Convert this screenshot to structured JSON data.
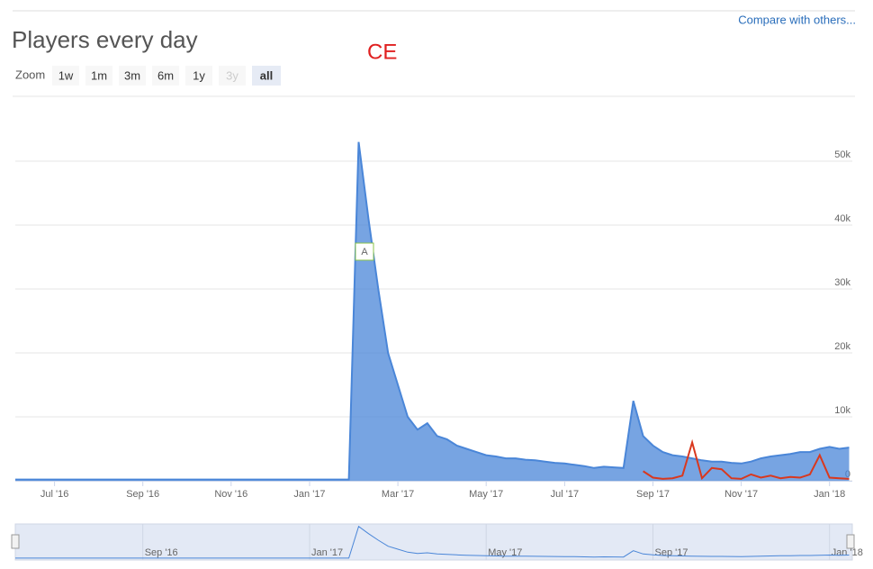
{
  "page": {
    "compare_link": "Compare with others...",
    "badge": "CE",
    "zoom_label": "Zoom",
    "zoom_buttons": [
      "1w",
      "1m",
      "3m",
      "6m",
      "1y",
      "3y",
      "all"
    ],
    "disabled_button": "3y",
    "active_button": "all"
  },
  "chart_data": {
    "type": "area",
    "title": "Players every day",
    "categories": [
      null,
      null,
      null,
      null,
      "Jul '16",
      null,
      null,
      null,
      null,
      null,
      null,
      null,
      null,
      "Sep '16",
      null,
      null,
      null,
      null,
      null,
      null,
      null,
      null,
      "Nov '16",
      null,
      null,
      null,
      null,
      null,
      null,
      null,
      "Jan '17",
      null,
      null,
      null,
      null,
      null,
      null,
      null,
      null,
      "Mar '17",
      null,
      null,
      null,
      null,
      null,
      null,
      null,
      null,
      "May '17",
      null,
      null,
      null,
      null,
      null,
      null,
      null,
      "Jul '17",
      null,
      null,
      null,
      null,
      null,
      null,
      null,
      null,
      "Sep '17",
      null,
      null,
      null,
      null,
      null,
      null,
      null,
      null,
      "Nov '17",
      null,
      null,
      null,
      null,
      null,
      null,
      null,
      null,
      "Jan '18",
      null,
      null
    ],
    "series": [
      {
        "name": "Players",
        "color": "#4a86d8",
        "values": [
          200,
          200,
          200,
          200,
          200,
          200,
          200,
          200,
          200,
          200,
          200,
          200,
          200,
          200,
          200,
          200,
          200,
          200,
          200,
          200,
          200,
          200,
          200,
          200,
          200,
          200,
          200,
          200,
          200,
          200,
          200,
          200,
          200,
          200,
          200,
          53000,
          41000,
          30000,
          20000,
          15000,
          10000,
          8000,
          9000,
          7000,
          6500,
          5500,
          5000,
          4500,
          4000,
          3800,
          3500,
          3500,
          3300,
          3200,
          3000,
          2800,
          2700,
          2500,
          2300,
          2000,
          2200,
          2100,
          2000,
          12500,
          7000,
          5500,
          4500,
          4000,
          3800,
          3500,
          3200,
          3000,
          3000,
          2800,
          2700,
          3000,
          3500,
          3800,
          4000,
          4200,
          4500,
          4500,
          5000,
          5300,
          5000,
          5200
        ]
      },
      {
        "name": "CE",
        "color": "#d9381e",
        "values": [
          null,
          null,
          null,
          null,
          null,
          null,
          null,
          null,
          null,
          null,
          null,
          null,
          null,
          null,
          null,
          null,
          null,
          null,
          null,
          null,
          null,
          null,
          null,
          null,
          null,
          null,
          null,
          null,
          null,
          null,
          null,
          null,
          null,
          null,
          null,
          null,
          null,
          null,
          null,
          null,
          null,
          null,
          null,
          null,
          null,
          null,
          null,
          null,
          null,
          null,
          null,
          null,
          null,
          null,
          null,
          null,
          null,
          null,
          null,
          null,
          null,
          null,
          null,
          null,
          1500,
          500,
          300,
          400,
          800,
          6000,
          400,
          2000,
          1800,
          400,
          300,
          1000,
          500,
          800,
          400,
          600,
          500,
          1000,
          4000,
          500,
          400,
          300
        ]
      }
    ],
    "annotations": [
      "A"
    ],
    "ylim": [
      0,
      60000
    ],
    "yticks": [
      0,
      {
        "value": 10000,
        "label": "10k"
      },
      {
        "value": 20000,
        "label": "20k"
      },
      {
        "value": 30000,
        "label": "30k"
      },
      {
        "value": 40000,
        "label": "40k"
      },
      {
        "value": 50000,
        "label": "50k"
      }
    ],
    "grid": true
  }
}
